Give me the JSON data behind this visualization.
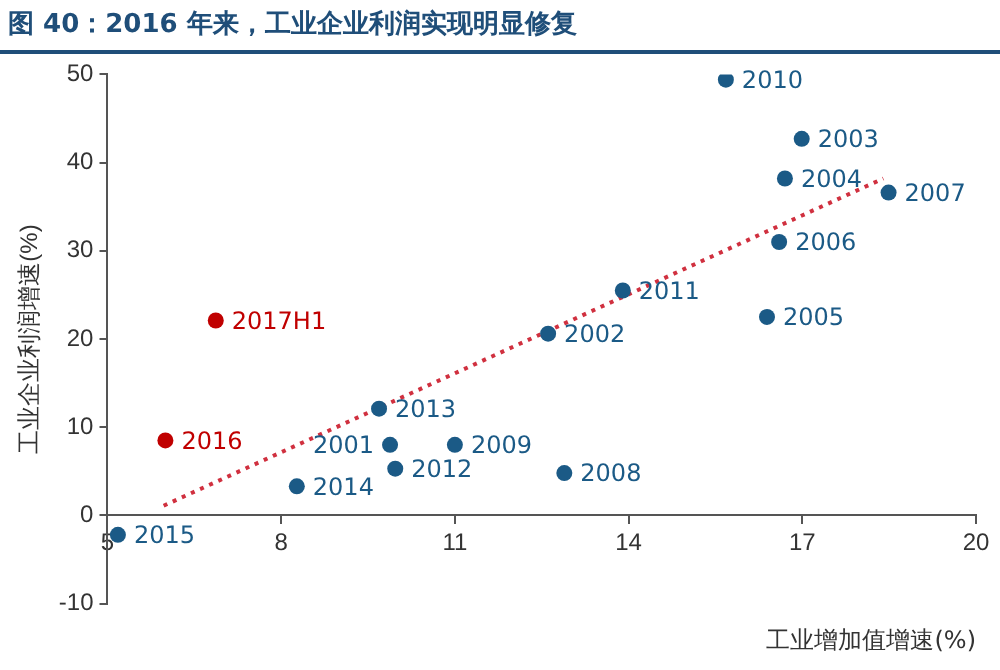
{
  "chart_data": {
    "type": "scatter",
    "title": "图 40：2016 年来，工业企业利润实现明显修复",
    "xlabel": "工业增加值增速(%)",
    "ylabel": "工业企业利润增速(%)",
    "series": [
      {
        "color": "#1b5a86",
        "x": [
          5.18,
          8.27,
          9.69,
          9.88,
          9.97,
          11.0,
          12.89,
          12.61,
          13.9,
          16.39,
          16.6,
          16.7,
          16.99,
          18.49,
          15.68
        ],
        "values": [
          -2.2,
          3.3,
          12.1,
          8.0,
          5.3,
          8.0,
          4.8,
          20.6,
          25.5,
          22.5,
          31.0,
          38.2,
          42.7,
          36.6,
          49.4
        ]
      },
      {
        "color": "#c00000",
        "x": [
          6.0,
          6.87
        ],
        "values": [
          8.5,
          22.1
        ]
      },
      {
        "type": "line",
        "color": "#d0303f",
        "line_style": "dotted",
        "marker": "none",
        "x": [
          5.97,
          18.4
        ],
        "values": [
          1.1,
          38.2
        ]
      }
    ],
    "annotations": [
      {
        "text": "2015",
        "x": 5.18,
        "y": -2.2
      },
      {
        "text": "2014",
        "x": 8.27,
        "y": 3.3
      },
      {
        "text": "2013",
        "x": 9.69,
        "y": 12.1
      },
      {
        "text": "2001",
        "x": 9.88,
        "y": 8.0
      },
      {
        "text": "2012",
        "x": 9.97,
        "y": 5.3
      },
      {
        "text": "2009",
        "x": 11.0,
        "y": 8.0
      },
      {
        "text": "2008",
        "x": 12.89,
        "y": 4.8
      },
      {
        "text": "2002",
        "x": 12.61,
        "y": 20.6
      },
      {
        "text": "2011",
        "x": 13.9,
        "y": 25.5
      },
      {
        "text": "2005",
        "x": 16.39,
        "y": 22.5
      },
      {
        "text": "2006",
        "x": 16.6,
        "y": 31.0
      },
      {
        "text": "2004",
        "x": 16.7,
        "y": 38.2
      },
      {
        "text": "2003",
        "x": 16.99,
        "y": 42.7
      },
      {
        "text": "2007",
        "x": 18.49,
        "y": 36.6
      },
      {
        "text": "2010",
        "x": 15.68,
        "y": 49.4
      },
      {
        "text": "2016",
        "x": 6.0,
        "y": 8.5
      },
      {
        "text": "2017H1",
        "x": 6.87,
        "y": 22.1
      }
    ],
    "xlim": [
      5,
      20
    ],
    "xticks": [
      5,
      8,
      11,
      14,
      17,
      20
    ],
    "ylim": [
      -10,
      50
    ],
    "yticks": [
      -10,
      0,
      10,
      20,
      30,
      40,
      50
    ],
    "marker": "circle",
    "grid": false,
    "legend": false
  }
}
